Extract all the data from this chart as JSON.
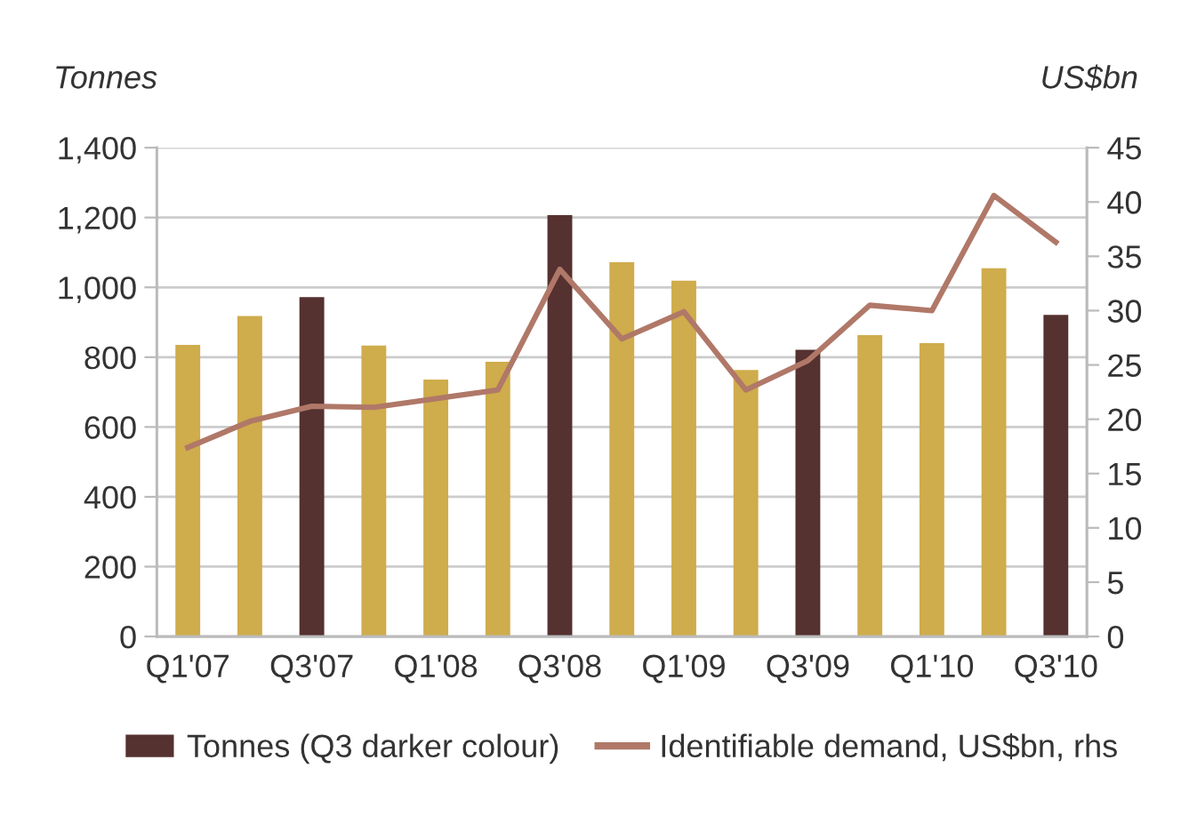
{
  "chart_data": {
    "type": "bar",
    "ylabel": "Tonnes",
    "y2label": "US$bn",
    "categories": [
      "Q1'07",
      null,
      "Q3'07",
      null,
      "Q1'08",
      null,
      "Q3'08",
      null,
      "Q1'09",
      null,
      "Q3'09",
      null,
      "Q1'10",
      null,
      "Q3'10"
    ],
    "series": [
      {
        "name": "Tonnes (Q3 darker colour)",
        "color": "#553130",
        "colors": [
          "#cfac4c",
          "#cfac4c",
          "#553130",
          "#cfac4c",
          "#cfac4c",
          "#cfac4c",
          "#553130",
          "#cfac4c",
          "#cfac4c",
          "#cfac4c",
          "#553130",
          "#cfac4c",
          "#cfac4c",
          "#cfac4c",
          "#553130"
        ],
        "values": [
          835,
          918,
          972,
          833,
          736,
          787,
          1207,
          1072,
          1019,
          763,
          821,
          863,
          840,
          1055,
          921
        ]
      },
      {
        "name": "Identifiable demand, US$bn, rhs",
        "type": "line",
        "axis": "y2",
        "color": "#b07868",
        "marker": "none",
        "line_style": "solid",
        "values": [
          17.4,
          19.8,
          21.2,
          21.1,
          21.9,
          22.7,
          33.8,
          27.4,
          29.9,
          22.7,
          25.4,
          30.5,
          30.0,
          40.6,
          36.3
        ]
      }
    ],
    "ylim": [
      0,
      1400
    ],
    "yticks": [
      0,
      200,
      400,
      600,
      800,
      {
        "value": 1000,
        "label": "1,000"
      },
      {
        "value": 1200,
        "label": "1,200"
      },
      {
        "value": 1400,
        "label": "1,400"
      }
    ],
    "y2lim": [
      0,
      45
    ],
    "y2ticks": [
      0,
      5,
      10,
      15,
      20,
      25,
      30,
      35,
      40,
      45
    ],
    "grid": "y",
    "legend": "bottom"
  }
}
